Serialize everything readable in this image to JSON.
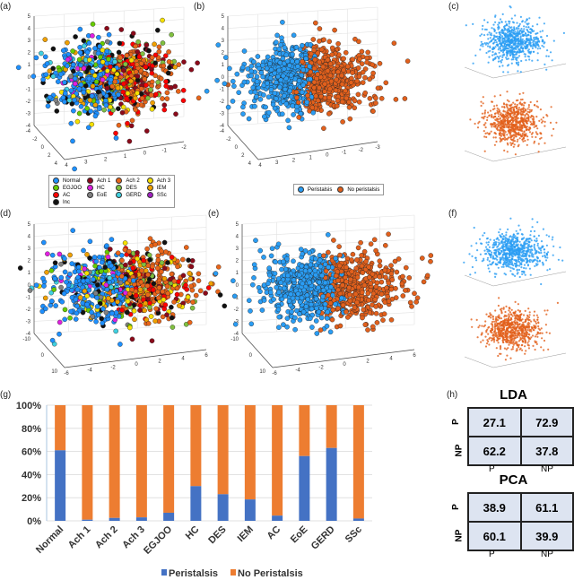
{
  "panels": {
    "a": "(a)",
    "b": "(b)",
    "c": "(c)",
    "d": "(d)",
    "e": "(e)",
    "f": "(f)",
    "g": "(g)",
    "h": "(h)"
  },
  "colors": {
    "peristalsis": "#2a9df4",
    "no_peristalsis": "#e2601c",
    "bar_peristalsis": "#4472c4",
    "bar_no_peristalsis": "#ed7d31"
  },
  "class_legend": [
    {
      "label": "Normal",
      "color": "#1e90ff"
    },
    {
      "label": "Ach 1",
      "color": "#8b0a1a"
    },
    {
      "label": "Ach 2",
      "color": "#e8651a"
    },
    {
      "label": "Ach 3",
      "color": "#f5e000"
    },
    {
      "label": "EGJOO",
      "color": "#66cc00"
    },
    {
      "label": "HC",
      "color": "#e020e0"
    },
    {
      "label": "DES",
      "color": "#80c040"
    },
    {
      "label": "IEM",
      "color": "#f0a000"
    },
    {
      "label": "AC",
      "color": "#ff0000"
    },
    {
      "label": "EoE",
      "color": "#808080"
    },
    {
      "label": "GERD",
      "color": "#40d0e0"
    },
    {
      "label": "SSc",
      "color": "#a020c0"
    },
    {
      "label": "Inc",
      "color": "#111111"
    }
  ],
  "binary_legend": [
    {
      "label": "Peristalsis",
      "color": "#2a9df4"
    },
    {
      "label": "No peristalsis",
      "color": "#e2601c"
    }
  ],
  "chart_data": [
    {
      "panel": "a",
      "type": "scatter3d",
      "coloring": "class",
      "z_ticks": [
        "5",
        "4",
        "3",
        "2",
        "1",
        "0",
        "-1",
        "-2",
        "-3",
        "-4"
      ],
      "y_ticks": [
        "-4",
        "-2",
        "0",
        "2",
        "4"
      ],
      "x_ticks": [
        "4",
        "3",
        "2",
        "1",
        "0",
        "-1",
        "-2"
      ]
    },
    {
      "panel": "b",
      "type": "scatter3d",
      "coloring": "binary",
      "z_ticks": [
        "5",
        "4",
        "3",
        "2",
        "1",
        "0",
        "-1",
        "-2",
        "-3",
        "-4"
      ],
      "y_ticks": [
        "-4",
        "-2",
        "0",
        "2",
        "4"
      ],
      "x_ticks": [
        "4",
        "3",
        "2",
        "1",
        "0",
        "-1",
        "-2",
        "-3"
      ]
    },
    {
      "panel": "d",
      "type": "scatter3d",
      "coloring": "class",
      "z_ticks": [
        "5",
        "4",
        "3",
        "2",
        "1",
        "0",
        "-1",
        "-2",
        "-3",
        "-4"
      ],
      "y_ticks": [
        "-10",
        "0",
        "10"
      ],
      "x_ticks": [
        "-6",
        "-4",
        "-2",
        "0",
        "2",
        "4",
        "6"
      ]
    },
    {
      "panel": "e",
      "type": "scatter3d",
      "coloring": "binary",
      "z_ticks": [
        "5",
        "4",
        "3",
        "2",
        "1",
        "0",
        "-1",
        "-2",
        "-3",
        "-4"
      ],
      "y_ticks": [
        "-10",
        "0",
        "10"
      ],
      "x_ticks": [
        "-6",
        "-4",
        "-2",
        "0",
        "2",
        "4",
        "6"
      ]
    },
    {
      "panel": "g",
      "type": "bar",
      "stacked": true,
      "categories": [
        "Normal",
        "Ach 1",
        "Ach 2",
        "Ach 3",
        "EGJOO",
        "HC",
        "DES",
        "IEM",
        "AC",
        "EoE",
        "GERD",
        "SSc"
      ],
      "series": [
        {
          "name": "Peristalsis",
          "values": [
            61,
            1,
            2.5,
            3,
            7,
            30,
            23,
            18.5,
            4.5,
            56,
            63,
            2
          ]
        },
        {
          "name": "No Peristalsis",
          "values": [
            39,
            99,
            97.5,
            97,
            93,
            70,
            77,
            81.5,
            95.5,
            44,
            37,
            98
          ]
        }
      ],
      "yticks": [
        "0%",
        "20%",
        "40%",
        "60%",
        "80%",
        "100%"
      ],
      "ylim": [
        0,
        100
      ],
      "grid": true,
      "legend": "bottom"
    }
  ],
  "confusion": [
    {
      "title": "LDA",
      "row_labels": [
        "P",
        "NP"
      ],
      "col_labels": [
        "P",
        "NP"
      ],
      "cells": [
        "27.1",
        "72.9",
        "62.2",
        "37.8"
      ]
    },
    {
      "title": "PCA",
      "row_labels": [
        "P",
        "NP"
      ],
      "col_labels": [
        "P",
        "NP"
      ],
      "cells": [
        "38.9",
        "61.1",
        "60.1",
        "39.9"
      ]
    }
  ]
}
